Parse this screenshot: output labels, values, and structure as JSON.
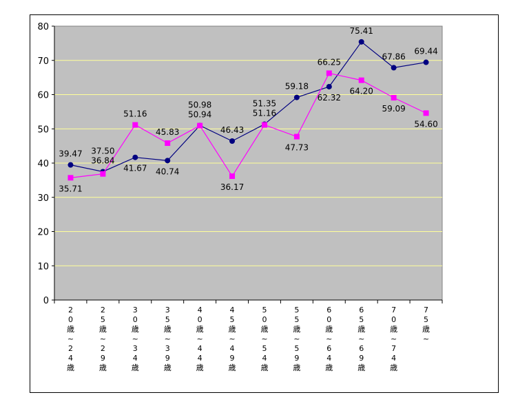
{
  "chart_data": {
    "type": "line",
    "title": "",
    "xlabel": "",
    "ylabel": "",
    "ylim": [
      0,
      80
    ],
    "yticks": [
      0,
      10,
      20,
      30,
      40,
      50,
      60,
      70,
      80
    ],
    "grid": true,
    "legend": "none",
    "plot_background": "#c0c0c0",
    "gridline_color": "#ffff99",
    "categories": [
      "20歳~24歳",
      "25歳~29歳",
      "30歳~34歳",
      "35歳~39歳",
      "40歳~44歳",
      "45歳~49歳",
      "50歳~54歳",
      "55歳~59歳",
      "60歳~64歳",
      "65歳~69歳",
      "70歳~74歳",
      "75歳~"
    ],
    "series": [
      {
        "color": "#000080",
        "marker": "circle",
        "values": [
          39.47,
          37.5,
          41.67,
          40.74,
          50.98,
          46.43,
          51.35,
          59.18,
          62.32,
          75.41,
          67.86,
          69.44
        ],
        "labels": [
          "39.47",
          "37.50",
          "41.67",
          "40.74",
          "50.98",
          "46.43",
          "51.35",
          "59.18",
          "62.32",
          "75.41",
          "67.86",
          "69.44"
        ]
      },
      {
        "color": "#ff00ff",
        "marker": "square",
        "values": [
          35.71,
          36.84,
          51.16,
          45.83,
          50.94,
          36.17,
          51.16,
          47.73,
          66.25,
          64.2,
          59.09,
          54.6
        ],
        "labels": [
          "35.71",
          "36.84",
          "51.16",
          "45.83",
          "50.94",
          "36.17",
          "51.16",
          "47.73",
          "66.25",
          "64.20",
          "59.09",
          "54.60"
        ]
      }
    ]
  }
}
